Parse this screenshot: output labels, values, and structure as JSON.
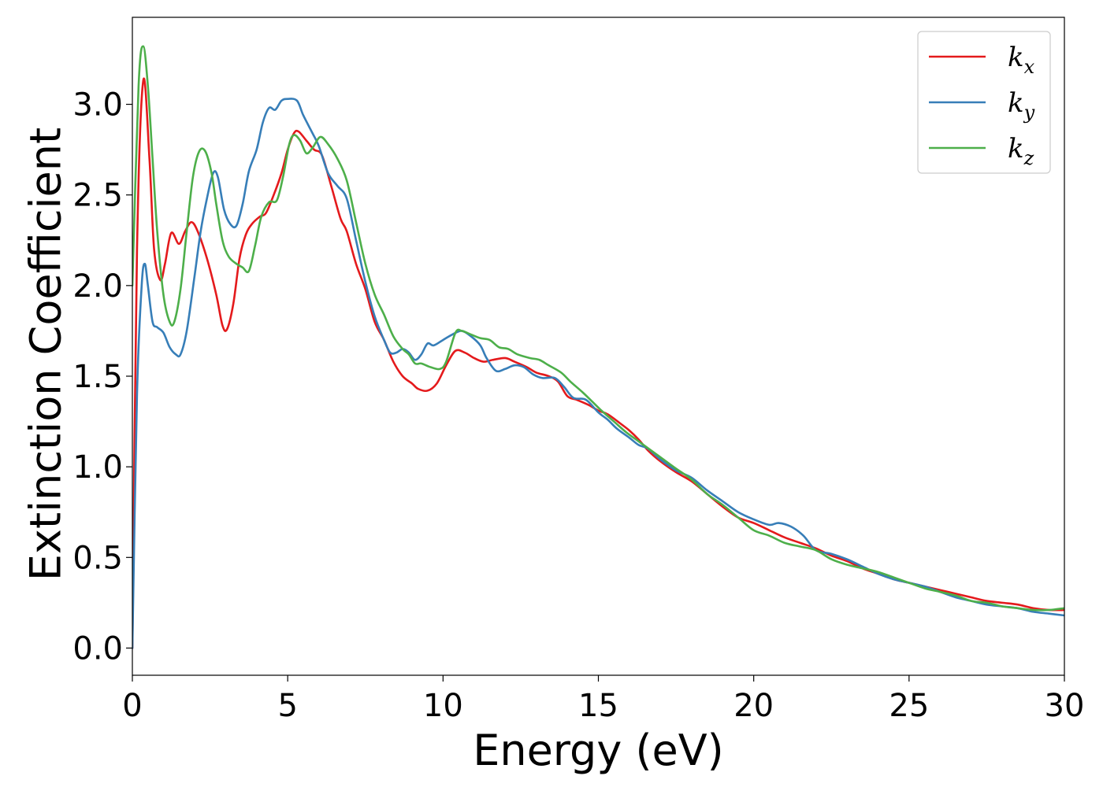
{
  "chart_data": {
    "type": "line",
    "xlabel": "Energy (eV)",
    "ylabel": "Extinction Coefficient",
    "xlim": [
      0,
      30
    ],
    "ylim": [
      -0.15,
      3.48
    ],
    "xticks": [
      0,
      5,
      10,
      15,
      20,
      25,
      30
    ],
    "yticks": [
      0.0,
      0.5,
      1.0,
      1.5,
      2.0,
      2.5,
      3.0
    ],
    "xtick_labels": [
      "0",
      "5",
      "10",
      "15",
      "20",
      "25",
      "30"
    ],
    "ytick_labels": [
      "0.0",
      "0.5",
      "1.0",
      "1.5",
      "2.0",
      "2.5",
      "3.0"
    ],
    "grid": false,
    "legend_position": "top-right",
    "series": [
      {
        "name": "k",
        "subscript": "x",
        "color": "#e41a1c",
        "points": [
          [
            0,
            0
          ],
          [
            0.15,
            2.2
          ],
          [
            0.35,
            3.13
          ],
          [
            0.55,
            2.7
          ],
          [
            0.7,
            2.2
          ],
          [
            0.9,
            2.03
          ],
          [
            1.05,
            2.12
          ],
          [
            1.25,
            2.29
          ],
          [
            1.5,
            2.23
          ],
          [
            1.7,
            2.3
          ],
          [
            1.9,
            2.35
          ],
          [
            2.1,
            2.3
          ],
          [
            2.4,
            2.15
          ],
          [
            2.7,
            1.95
          ],
          [
            2.9,
            1.78
          ],
          [
            3.05,
            1.76
          ],
          [
            3.25,
            1.9
          ],
          [
            3.45,
            2.15
          ],
          [
            3.65,
            2.28
          ],
          [
            3.85,
            2.34
          ],
          [
            4.1,
            2.38
          ],
          [
            4.3,
            2.4
          ],
          [
            4.55,
            2.5
          ],
          [
            4.8,
            2.62
          ],
          [
            5.0,
            2.75
          ],
          [
            5.2,
            2.84
          ],
          [
            5.35,
            2.85
          ],
          [
            5.6,
            2.8
          ],
          [
            5.85,
            2.75
          ],
          [
            6.1,
            2.72
          ],
          [
            6.4,
            2.55
          ],
          [
            6.7,
            2.37
          ],
          [
            6.9,
            2.3
          ],
          [
            7.2,
            2.12
          ],
          [
            7.5,
            1.98
          ],
          [
            7.8,
            1.8
          ],
          [
            8.1,
            1.7
          ],
          [
            8.4,
            1.58
          ],
          [
            8.7,
            1.5
          ],
          [
            9.0,
            1.46
          ],
          [
            9.2,
            1.43
          ],
          [
            9.5,
            1.42
          ],
          [
            9.8,
            1.46
          ],
          [
            10.1,
            1.56
          ],
          [
            10.4,
            1.64
          ],
          [
            10.7,
            1.63
          ],
          [
            11.0,
            1.6
          ],
          [
            11.3,
            1.58
          ],
          [
            11.6,
            1.59
          ],
          [
            12.0,
            1.6
          ],
          [
            12.3,
            1.58
          ],
          [
            12.7,
            1.55
          ],
          [
            13.0,
            1.52
          ],
          [
            13.4,
            1.5
          ],
          [
            13.7,
            1.47
          ],
          [
            14.0,
            1.39
          ],
          [
            14.3,
            1.37
          ],
          [
            14.7,
            1.34
          ],
          [
            15.0,
            1.31
          ],
          [
            15.3,
            1.29
          ],
          [
            15.7,
            1.24
          ],
          [
            16.0,
            1.2
          ],
          [
            16.3,
            1.15
          ],
          [
            16.6,
            1.09
          ],
          [
            17.0,
            1.03
          ],
          [
            17.5,
            0.97
          ],
          [
            18.0,
            0.92
          ],
          [
            18.5,
            0.85
          ],
          [
            19.0,
            0.78
          ],
          [
            19.5,
            0.72
          ],
          [
            20.0,
            0.69
          ],
          [
            20.5,
            0.65
          ],
          [
            21.0,
            0.61
          ],
          [
            21.5,
            0.58
          ],
          [
            22.0,
            0.55
          ],
          [
            22.5,
            0.51
          ],
          [
            23.0,
            0.48
          ],
          [
            23.5,
            0.44
          ],
          [
            24.0,
            0.41
          ],
          [
            24.5,
            0.38
          ],
          [
            25.0,
            0.36
          ],
          [
            25.5,
            0.34
          ],
          [
            26.0,
            0.32
          ],
          [
            26.5,
            0.3
          ],
          [
            27.0,
            0.28
          ],
          [
            27.5,
            0.26
          ],
          [
            28.0,
            0.25
          ],
          [
            28.5,
            0.24
          ],
          [
            29.0,
            0.22
          ],
          [
            29.5,
            0.21
          ],
          [
            30.0,
            0.21
          ]
        ]
      },
      {
        "name": "k",
        "subscript": "y",
        "color": "#377eb8",
        "points": [
          [
            0,
            0
          ],
          [
            0.15,
            1.4
          ],
          [
            0.3,
            2.0
          ],
          [
            0.4,
            2.12
          ],
          [
            0.5,
            2.0
          ],
          [
            0.65,
            1.8
          ],
          [
            0.8,
            1.77
          ],
          [
            1.0,
            1.74
          ],
          [
            1.2,
            1.66
          ],
          [
            1.4,
            1.62
          ],
          [
            1.55,
            1.62
          ],
          [
            1.75,
            1.75
          ],
          [
            2.0,
            2.05
          ],
          [
            2.2,
            2.3
          ],
          [
            2.4,
            2.48
          ],
          [
            2.6,
            2.62
          ],
          [
            2.75,
            2.6
          ],
          [
            2.95,
            2.42
          ],
          [
            3.15,
            2.34
          ],
          [
            3.35,
            2.33
          ],
          [
            3.55,
            2.45
          ],
          [
            3.75,
            2.63
          ],
          [
            4.0,
            2.75
          ],
          [
            4.2,
            2.9
          ],
          [
            4.4,
            2.98
          ],
          [
            4.6,
            2.97
          ],
          [
            4.8,
            3.02
          ],
          [
            5.0,
            3.03
          ],
          [
            5.3,
            3.02
          ],
          [
            5.5,
            2.94
          ],
          [
            5.8,
            2.84
          ],
          [
            6.0,
            2.77
          ],
          [
            6.3,
            2.62
          ],
          [
            6.6,
            2.55
          ],
          [
            6.9,
            2.48
          ],
          [
            7.2,
            2.25
          ],
          [
            7.5,
            2.02
          ],
          [
            7.8,
            1.83
          ],
          [
            8.1,
            1.7
          ],
          [
            8.3,
            1.63
          ],
          [
            8.5,
            1.63
          ],
          [
            8.7,
            1.65
          ],
          [
            8.9,
            1.63
          ],
          [
            9.1,
            1.59
          ],
          [
            9.3,
            1.62
          ],
          [
            9.5,
            1.68
          ],
          [
            9.7,
            1.67
          ],
          [
            10.0,
            1.7
          ],
          [
            10.3,
            1.73
          ],
          [
            10.6,
            1.75
          ],
          [
            10.9,
            1.72
          ],
          [
            11.2,
            1.67
          ],
          [
            11.4,
            1.6
          ],
          [
            11.7,
            1.53
          ],
          [
            12.0,
            1.54
          ],
          [
            12.3,
            1.56
          ],
          [
            12.6,
            1.55
          ],
          [
            12.9,
            1.51
          ],
          [
            13.2,
            1.49
          ],
          [
            13.6,
            1.49
          ],
          [
            13.9,
            1.44
          ],
          [
            14.2,
            1.38
          ],
          [
            14.6,
            1.37
          ],
          [
            15.0,
            1.3
          ],
          [
            15.3,
            1.26
          ],
          [
            15.6,
            1.21
          ],
          [
            16.0,
            1.16
          ],
          [
            16.3,
            1.12
          ],
          [
            16.6,
            1.1
          ],
          [
            17.0,
            1.04
          ],
          [
            17.5,
            0.98
          ],
          [
            18.0,
            0.94
          ],
          [
            18.5,
            0.87
          ],
          [
            19.0,
            0.81
          ],
          [
            19.5,
            0.75
          ],
          [
            20.0,
            0.71
          ],
          [
            20.5,
            0.68
          ],
          [
            20.8,
            0.69
          ],
          [
            21.2,
            0.67
          ],
          [
            21.6,
            0.62
          ],
          [
            22.0,
            0.54
          ],
          [
            22.5,
            0.52
          ],
          [
            23.0,
            0.49
          ],
          [
            23.5,
            0.45
          ],
          [
            24.0,
            0.41
          ],
          [
            24.5,
            0.38
          ],
          [
            25.0,
            0.36
          ],
          [
            25.5,
            0.34
          ],
          [
            26.0,
            0.31
          ],
          [
            26.5,
            0.28
          ],
          [
            27.0,
            0.26
          ],
          [
            27.5,
            0.24
          ],
          [
            28.0,
            0.23
          ],
          [
            28.5,
            0.22
          ],
          [
            29.0,
            0.2
          ],
          [
            29.5,
            0.19
          ],
          [
            30.0,
            0.18
          ]
        ]
      },
      {
        "name": "k",
        "subscript": "z",
        "color": "#4daf4a",
        "points": [
          [
            0,
            2.0
          ],
          [
            0.2,
            3.1
          ],
          [
            0.35,
            3.32
          ],
          [
            0.5,
            3.1
          ],
          [
            0.65,
            2.7
          ],
          [
            0.8,
            2.3
          ],
          [
            1.0,
            1.95
          ],
          [
            1.2,
            1.8
          ],
          [
            1.35,
            1.8
          ],
          [
            1.55,
            1.98
          ],
          [
            1.75,
            2.3
          ],
          [
            1.95,
            2.6
          ],
          [
            2.15,
            2.74
          ],
          [
            2.35,
            2.74
          ],
          [
            2.55,
            2.62
          ],
          [
            2.7,
            2.45
          ],
          [
            2.9,
            2.25
          ],
          [
            3.1,
            2.16
          ],
          [
            3.35,
            2.12
          ],
          [
            3.55,
            2.1
          ],
          [
            3.75,
            2.08
          ],
          [
            3.95,
            2.22
          ],
          [
            4.15,
            2.38
          ],
          [
            4.4,
            2.46
          ],
          [
            4.65,
            2.47
          ],
          [
            4.85,
            2.6
          ],
          [
            5.05,
            2.78
          ],
          [
            5.2,
            2.83
          ],
          [
            5.4,
            2.8
          ],
          [
            5.6,
            2.73
          ],
          [
            5.8,
            2.76
          ],
          [
            6.05,
            2.82
          ],
          [
            6.3,
            2.78
          ],
          [
            6.6,
            2.7
          ],
          [
            6.9,
            2.58
          ],
          [
            7.2,
            2.35
          ],
          [
            7.5,
            2.12
          ],
          [
            7.8,
            1.95
          ],
          [
            8.1,
            1.84
          ],
          [
            8.4,
            1.72
          ],
          [
            8.7,
            1.65
          ],
          [
            8.9,
            1.62
          ],
          [
            9.1,
            1.57
          ],
          [
            9.3,
            1.57
          ],
          [
            9.6,
            1.55
          ],
          [
            9.9,
            1.54
          ],
          [
            10.1,
            1.58
          ],
          [
            10.4,
            1.74
          ],
          [
            10.6,
            1.75
          ],
          [
            10.9,
            1.73
          ],
          [
            11.2,
            1.71
          ],
          [
            11.5,
            1.7
          ],
          [
            11.8,
            1.66
          ],
          [
            12.1,
            1.65
          ],
          [
            12.4,
            1.62
          ],
          [
            12.8,
            1.6
          ],
          [
            13.1,
            1.59
          ],
          [
            13.4,
            1.56
          ],
          [
            13.8,
            1.52
          ],
          [
            14.1,
            1.47
          ],
          [
            14.5,
            1.41
          ],
          [
            14.8,
            1.36
          ],
          [
            15.1,
            1.31
          ],
          [
            15.5,
            1.25
          ],
          [
            15.9,
            1.19
          ],
          [
            16.3,
            1.14
          ],
          [
            16.7,
            1.09
          ],
          [
            17.1,
            1.04
          ],
          [
            17.5,
            0.99
          ],
          [
            18.0,
            0.93
          ],
          [
            18.5,
            0.85
          ],
          [
            19.0,
            0.79
          ],
          [
            19.5,
            0.72
          ],
          [
            20.0,
            0.65
          ],
          [
            20.5,
            0.62
          ],
          [
            21.0,
            0.58
          ],
          [
            21.5,
            0.56
          ],
          [
            22.0,
            0.54
          ],
          [
            22.5,
            0.49
          ],
          [
            23.0,
            0.46
          ],
          [
            23.5,
            0.44
          ],
          [
            24.0,
            0.42
          ],
          [
            24.5,
            0.39
          ],
          [
            25.0,
            0.36
          ],
          [
            25.5,
            0.33
          ],
          [
            26.0,
            0.31
          ],
          [
            26.5,
            0.29
          ],
          [
            27.0,
            0.26
          ],
          [
            27.5,
            0.25
          ],
          [
            28.0,
            0.23
          ],
          [
            28.5,
            0.22
          ],
          [
            29.0,
            0.21
          ],
          [
            29.5,
            0.21
          ],
          [
            30.0,
            0.22
          ]
        ]
      }
    ]
  }
}
